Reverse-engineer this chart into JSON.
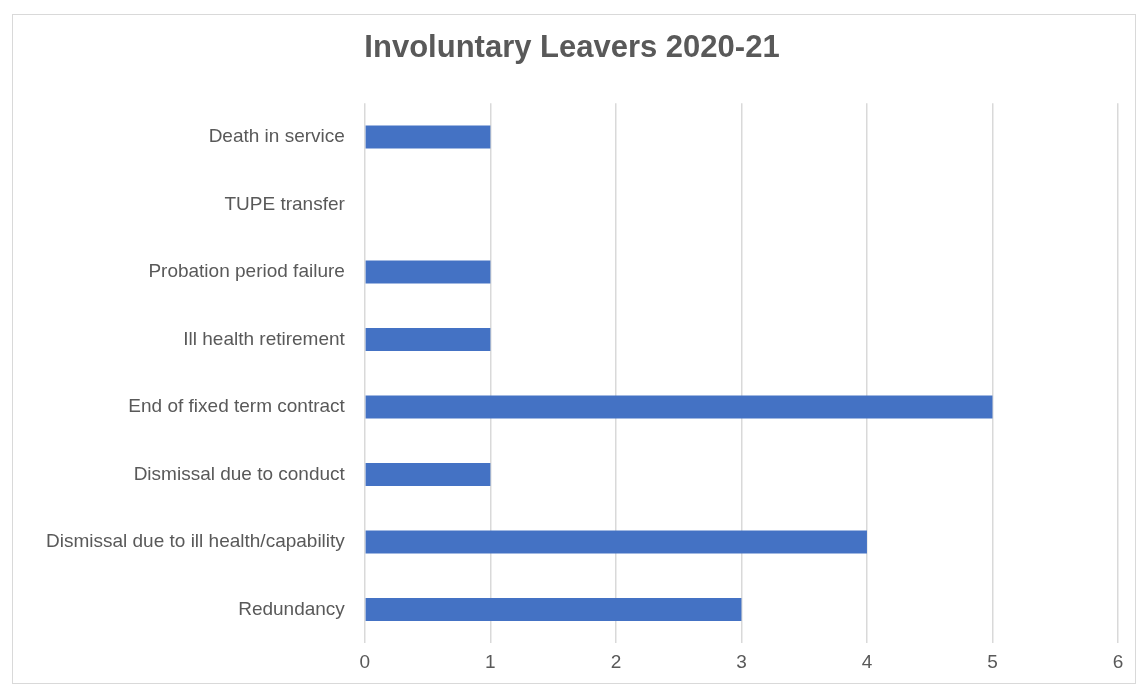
{
  "chart_data": {
    "type": "bar",
    "orientation": "horizontal",
    "title": "Involuntary Leavers 2020-21",
    "categories": [
      "Death in service",
      "TUPE transfer",
      "Probation period failure",
      "Ill health retirement",
      "End of fixed term contract",
      "Dismissal due to conduct",
      "Dismissal due to ill health/capability",
      "Redundancy"
    ],
    "values": [
      1,
      0,
      1,
      1,
      5,
      1,
      4,
      3
    ],
    "color": "#4472c4",
    "xlim": [
      0,
      6
    ],
    "xticks": [
      0,
      1,
      2,
      3,
      4,
      5,
      6
    ],
    "grid": "x"
  }
}
